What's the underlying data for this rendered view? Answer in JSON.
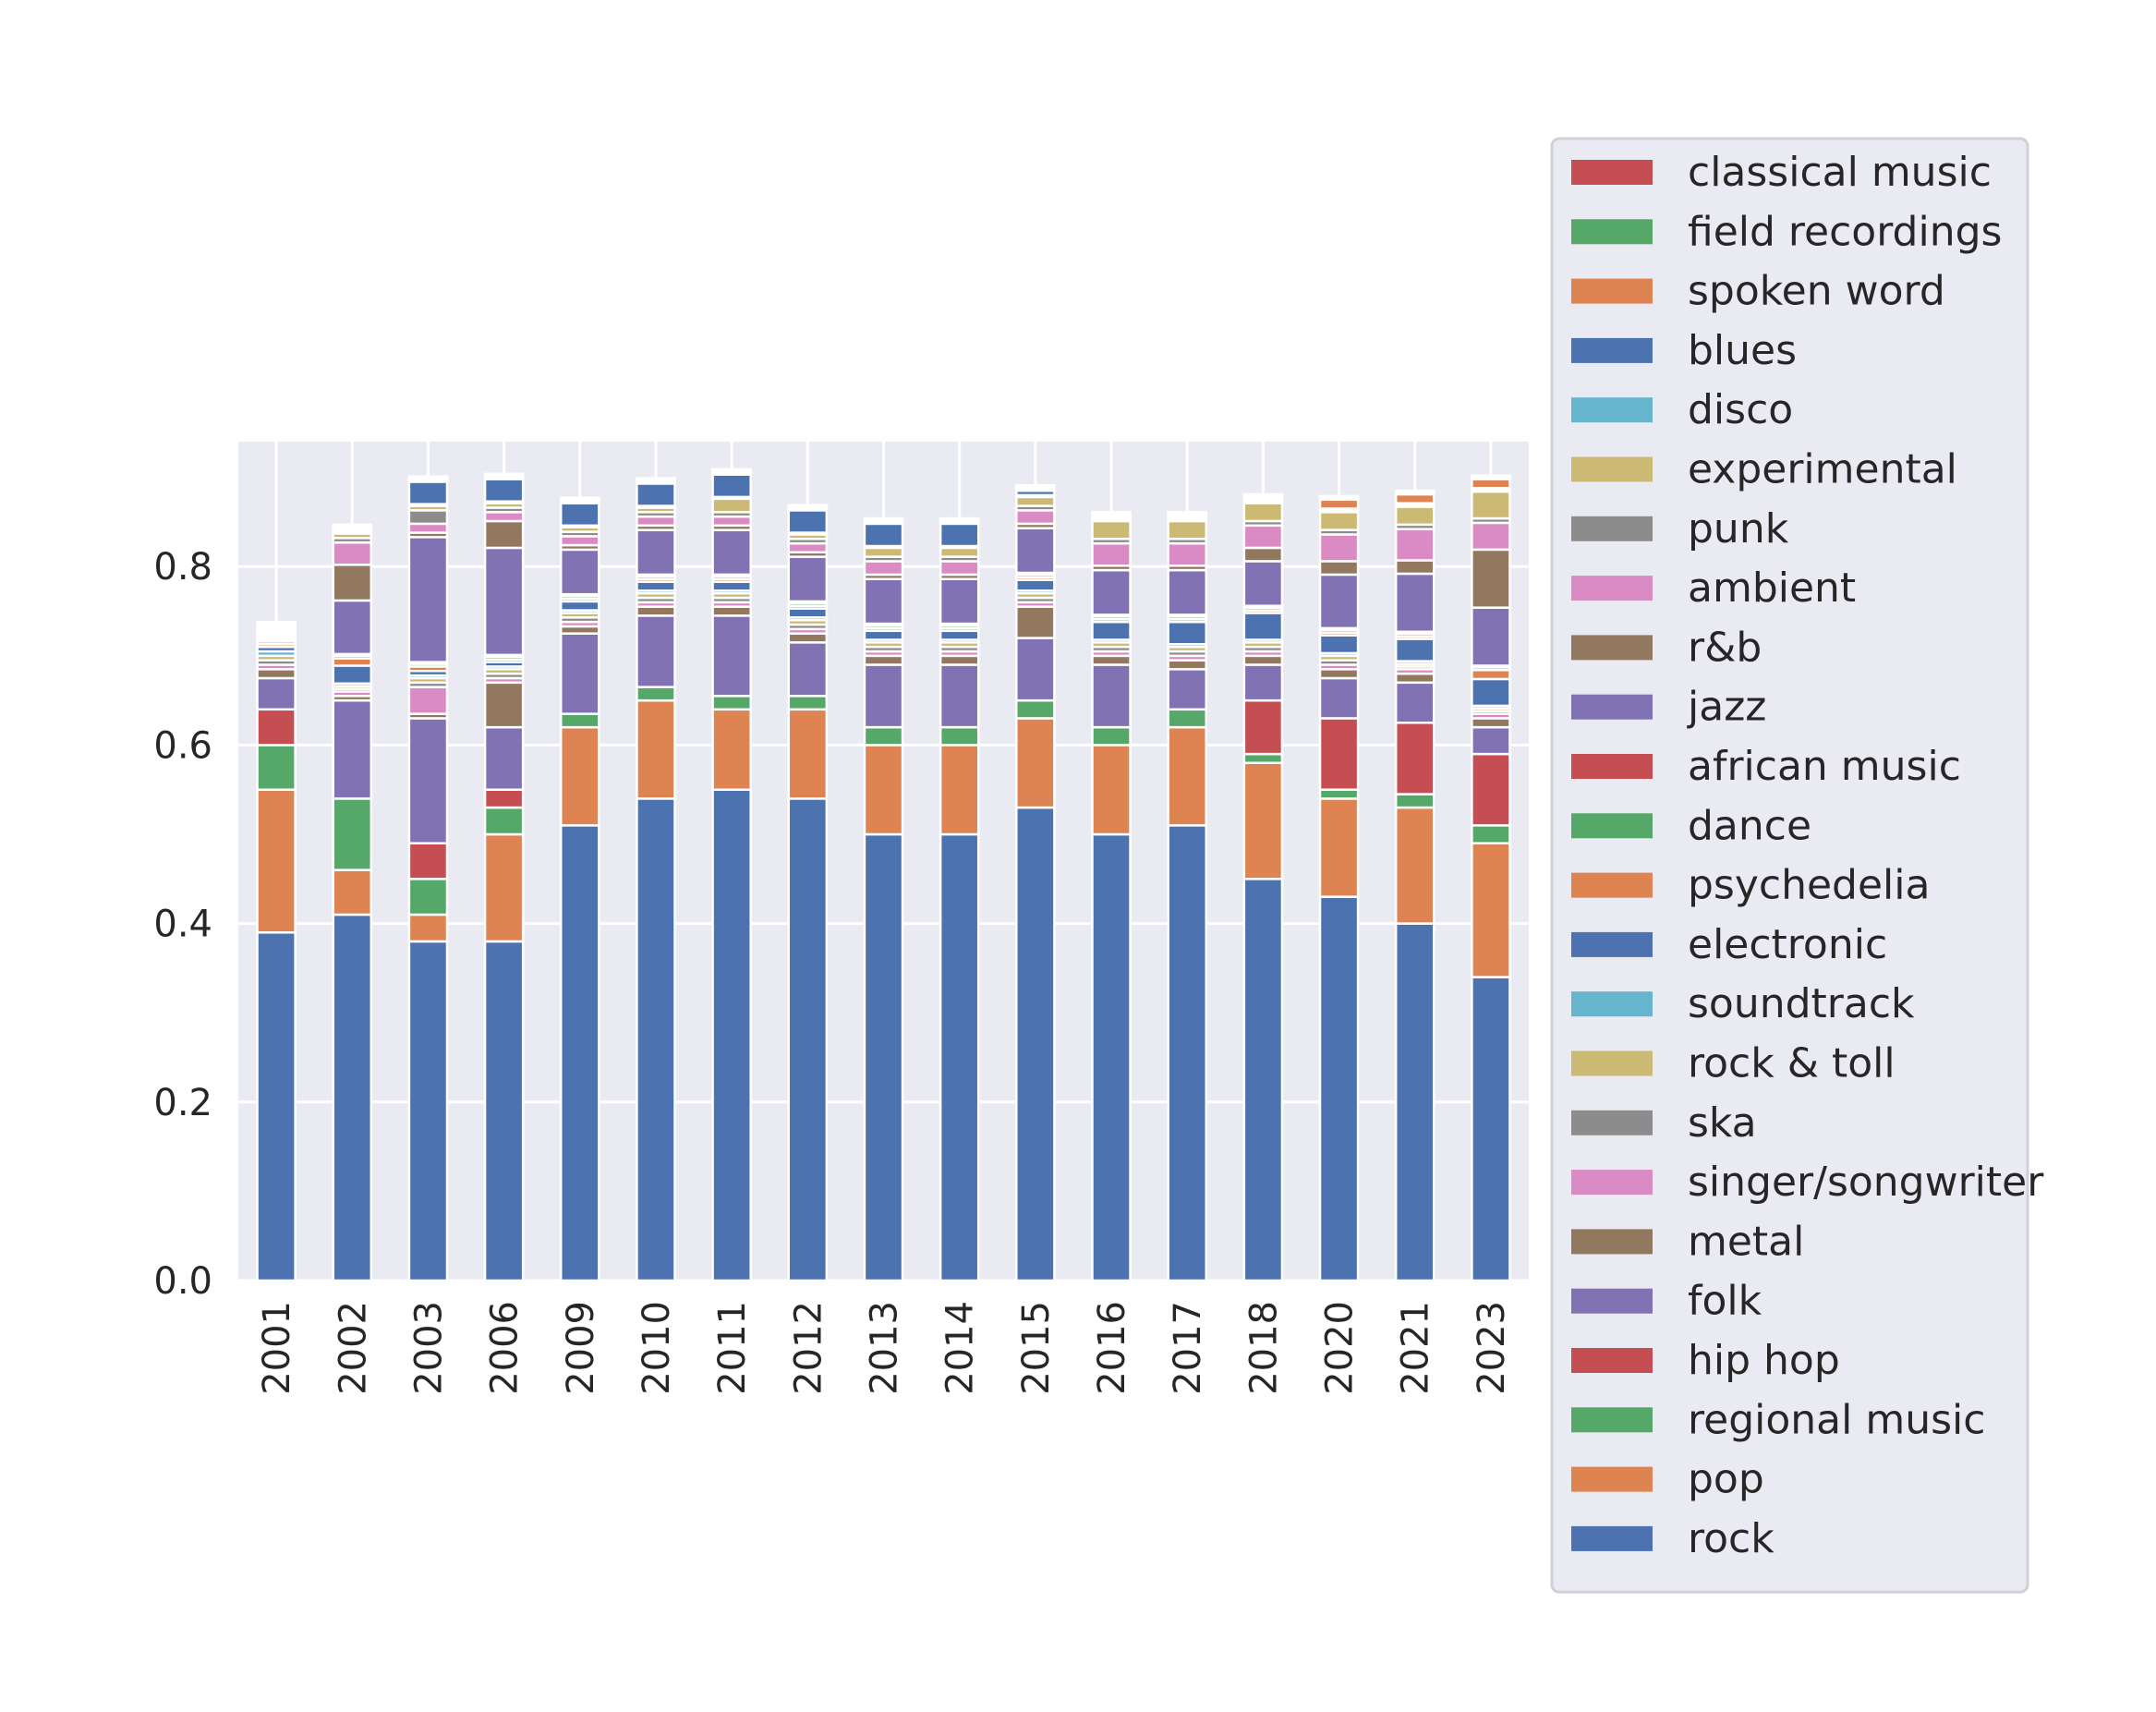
{
  "chart_data": {
    "type": "bar",
    "stacked": true,
    "categories": [
      "2001",
      "2002",
      "2003",
      "2006",
      "2009",
      "2010",
      "2011",
      "2012",
      "2013",
      "2014",
      "2015",
      "2016",
      "2017",
      "2018",
      "2020",
      "2021",
      "2023"
    ],
    "ylim": [
      0,
      0.94
    ],
    "yticks": [
      "0.0",
      "0.2",
      "0.4",
      "0.6",
      "0.8"
    ],
    "ytick_values": [
      0,
      0.2,
      0.4,
      0.6,
      0.8
    ],
    "grid": true,
    "legend_position": "right",
    "series": [
      {
        "name": "rock",
        "color": "#4c72b0",
        "values": [
          0.39,
          0.41,
          0.38,
          0.38,
          0.51,
          0.54,
          0.55,
          0.54,
          0.5,
          0.5,
          0.53,
          0.5,
          0.51,
          0.45,
          0.43,
          0.4,
          0.34
        ]
      },
      {
        "name": "pop",
        "color": "#dd8452",
        "values": [
          0.16,
          0.05,
          0.03,
          0.12,
          0.11,
          0.11,
          0.09,
          0.1,
          0.1,
          0.1,
          0.1,
          0.1,
          0.11,
          0.13,
          0.11,
          0.13,
          0.15
        ]
      },
      {
        "name": "regional music",
        "color": "#55a868",
        "values": [
          0.05,
          0.08,
          0.04,
          0.03,
          0.015,
          0.015,
          0.015,
          0.015,
          0.02,
          0.02,
          0.02,
          0.02,
          0.02,
          0.01,
          0.01,
          0.015,
          0.02
        ]
      },
      {
        "name": "hip hop",
        "color": "#c44e52",
        "values": [
          0.04,
          0,
          0.04,
          0.02,
          0,
          0,
          0,
          0,
          0,
          0,
          0,
          0,
          0,
          0.06,
          0.08,
          0.08,
          0.08
        ]
      },
      {
        "name": "folk",
        "color": "#8172b3",
        "values": [
          0.035,
          0.11,
          0.14,
          0.07,
          0.09,
          0.08,
          0.09,
          0.06,
          0.07,
          0.07,
          0.07,
          0.07,
          0.045,
          0.04,
          0.045,
          0.045,
          0.03
        ]
      },
      {
        "name": "metal",
        "color": "#937860",
        "values": [
          0.01,
          0.005,
          0.005,
          0.05,
          0.008,
          0.01,
          0.01,
          0.01,
          0.01,
          0.01,
          0.035,
          0.01,
          0.01,
          0.01,
          0.01,
          0.01,
          0.01
        ]
      },
      {
        "name": "singer/songwriter",
        "color": "#da8bc3",
        "values": [
          0.005,
          0.005,
          0.03,
          0.005,
          0.005,
          0.005,
          0.005,
          0.005,
          0.005,
          0.005,
          0.005,
          0.005,
          0.005,
          0.005,
          0.005,
          0.005,
          0.005
        ]
      },
      {
        "name": "ska",
        "color": "#8c8c8c",
        "values": [
          0.005,
          0.003,
          0.005,
          0.005,
          0.005,
          0.005,
          0.005,
          0.005,
          0.005,
          0.005,
          0.005,
          0.005,
          0.005,
          0.005,
          0.005,
          0.003,
          0.003
        ]
      },
      {
        "name": "rock & toll",
        "color": "#ccb974",
        "values": [
          0.005,
          0.003,
          0.005,
          0.005,
          0.005,
          0.005,
          0.005,
          0.005,
          0.005,
          0.005,
          0.005,
          0.005,
          0.005,
          0.005,
          0.005,
          0.003,
          0.003
        ]
      },
      {
        "name": "soundtrack",
        "color": "#64b5cd",
        "values": [
          0.005,
          0.003,
          0.003,
          0.003,
          0.003,
          0.003,
          0.003,
          0.003,
          0.003,
          0.003,
          0.003,
          0.003,
          0.003,
          0.003,
          0.003,
          0.003,
          0.003
        ]
      },
      {
        "name": "electronic",
        "color": "#4c72b0",
        "values": [
          0.005,
          0.02,
          0.005,
          0.005,
          0.01,
          0.01,
          0.01,
          0.01,
          0.01,
          0.01,
          0.012,
          0.02,
          0.025,
          0.03,
          0.02,
          0.025,
          0.03
        ]
      },
      {
        "name": "psychedelia",
        "color": "#dd8452",
        "values": [
          0.003,
          0.008,
          0.005,
          0.003,
          0.003,
          0.003,
          0.003,
          0.003,
          0.003,
          0.003,
          0.003,
          0.003,
          0.003,
          0.003,
          0.003,
          0.003,
          0.01
        ]
      },
      {
        "name": "dance",
        "color": "#55a868",
        "values": [
          0.003,
          0.003,
          0.003,
          0.003,
          0.003,
          0.003,
          0.003,
          0.003,
          0.003,
          0.003,
          0.003,
          0.003,
          0.003,
          0.003,
          0.003,
          0.003,
          0.003
        ]
      },
      {
        "name": "african music",
        "color": "#c44e52",
        "values": [
          0.002,
          0.002,
          0.002,
          0.002,
          0.002,
          0.002,
          0.002,
          0.002,
          0.002,
          0.002,
          0.002,
          0.002,
          0.002,
          0.002,
          0.002,
          0.002,
          0.002
        ]
      },
      {
        "name": "jazz",
        "color": "#8172b3",
        "values": [
          0.002,
          0.06,
          0.14,
          0.12,
          0.05,
          0.05,
          0.05,
          0.05,
          0.05,
          0.05,
          0.05,
          0.05,
          0.05,
          0.05,
          0.06,
          0.065,
          0.065
        ]
      },
      {
        "name": "r&b",
        "color": "#937860",
        "values": [
          0.002,
          0.04,
          0.005,
          0.03,
          0.005,
          0.005,
          0.005,
          0.005,
          0.005,
          0.005,
          0.005,
          0.005,
          0.005,
          0.015,
          0.015,
          0.015,
          0.065
        ]
      },
      {
        "name": "ambient",
        "color": "#da8bc3",
        "values": [
          0.002,
          0.025,
          0.01,
          0.01,
          0.01,
          0.01,
          0.01,
          0.01,
          0.015,
          0.015,
          0.015,
          0.025,
          0.025,
          0.025,
          0.03,
          0.035,
          0.03
        ]
      },
      {
        "name": "punk",
        "color": "#8c8c8c",
        "values": [
          0.002,
          0.005,
          0.015,
          0.005,
          0.005,
          0.005,
          0.005,
          0.005,
          0.005,
          0.005,
          0.005,
          0.005,
          0.005,
          0.005,
          0.005,
          0.005,
          0.005
        ]
      },
      {
        "name": "experimental",
        "color": "#ccb974",
        "values": [
          0.002,
          0.005,
          0.005,
          0.005,
          0.005,
          0.005,
          0.015,
          0.005,
          0.01,
          0.01,
          0.01,
          0.02,
          0.02,
          0.02,
          0.02,
          0.02,
          0.03
        ]
      },
      {
        "name": "disco",
        "color": "#64b5cd",
        "values": [
          0.002,
          0.002,
          0.002,
          0.002,
          0.002,
          0.002,
          0.002,
          0.002,
          0.002,
          0.002,
          0.002,
          0.002,
          0.002,
          0.002,
          0.002,
          0.002,
          0.002
        ]
      },
      {
        "name": "blues",
        "color": "#4c72b0",
        "values": [
          0.002,
          0.002,
          0.025,
          0.025,
          0.025,
          0.025,
          0.025,
          0.025,
          0.025,
          0.025,
          0.005,
          0.002,
          0.002,
          0.002,
          0.002,
          0.002,
          0.002
        ]
      },
      {
        "name": "spoken word",
        "color": "#dd8452",
        "values": [
          0.002,
          0.002,
          0.002,
          0.002,
          0.002,
          0.002,
          0.002,
          0.002,
          0.002,
          0.002,
          0.002,
          0.002,
          0.002,
          0.002,
          0.01,
          0.01,
          0.01
        ]
      },
      {
        "name": "field recordings",
        "color": "#55a868",
        "values": [
          0.002,
          0.002,
          0.002,
          0.002,
          0.002,
          0.002,
          0.002,
          0.002,
          0.002,
          0.002,
          0.002,
          0.002,
          0.002,
          0.002,
          0.002,
          0.002,
          0.002
        ]
      },
      {
        "name": "classical music",
        "color": "#c44e52",
        "values": [
          0.002,
          0.002,
          0.002,
          0.002,
          0.002,
          0.002,
          0.002,
          0.002,
          0.002,
          0.002,
          0.002,
          0.002,
          0.002,
          0.002,
          0.002,
          0.002,
          0.002
        ]
      }
    ]
  }
}
